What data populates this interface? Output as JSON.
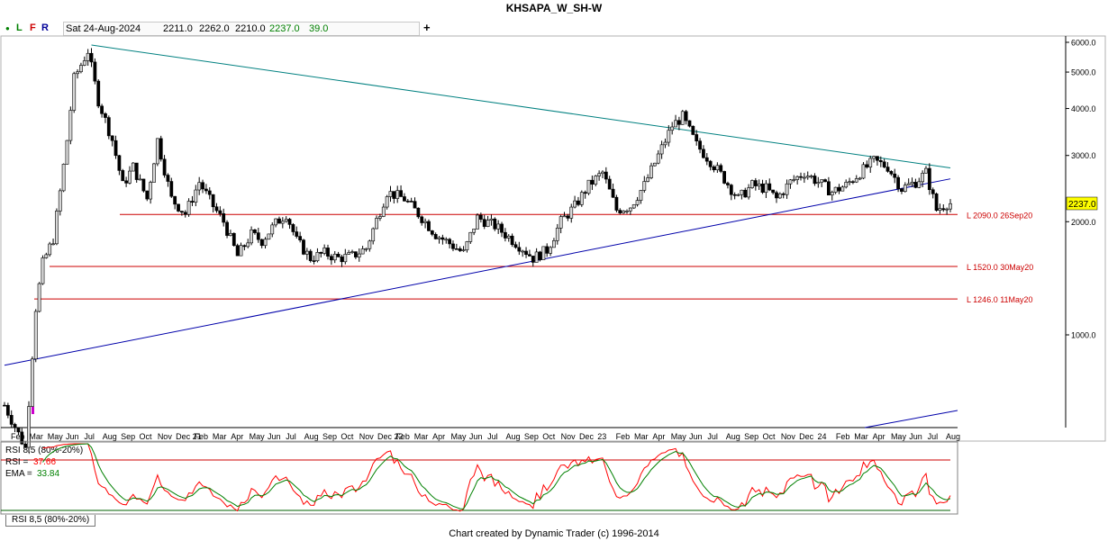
{
  "chart_data": {
    "type": "candlestick",
    "title": "KHSAPA_W_SH-W",
    "timeframe": "weekly",
    "y_scale": "log",
    "ylim": [
      800,
      6200
    ],
    "y_ticks": [
      {
        "value": 6000,
        "label": "6000.0"
      },
      {
        "value": 5000,
        "label": "5000.0"
      },
      {
        "value": 4000,
        "label": "4000.0"
      },
      {
        "value": 3000,
        "label": "3000.0"
      },
      {
        "value": 2000,
        "label": "2000.0"
      },
      {
        "value": 1000,
        "label": "1000.0"
      }
    ],
    "current_price_label": "2237.0",
    "current_price": 2237.0,
    "x_labels": [
      "Feb",
      "Mar",
      "May",
      "Jun",
      "Jul",
      "Aug",
      "Sep",
      "Oct",
      "Nov",
      "Dec 21",
      "Feb",
      "Mar",
      "Apr",
      "May",
      "Jun",
      "Jul",
      "Aug",
      "Sep",
      "Oct",
      "Nov",
      "Dec 22",
      "Feb",
      "Mar",
      "Apr",
      "May",
      "Jun",
      "Jul",
      "Aug",
      "Sep",
      "Oct",
      "Nov",
      "Dec",
      "23",
      "Feb",
      "Mar",
      "Apr",
      "May",
      "Jun",
      "Jul",
      "Aug",
      "Sep",
      "Oct",
      "Nov",
      "Dec",
      "24",
      "Feb",
      "Mar",
      "Apr",
      "May",
      "Jun",
      "Jul",
      "Aug"
    ],
    "horizontal_lines": [
      {
        "value": 2090.0,
        "label": "L 2090.0 26Sep20",
        "color": "#cc0000"
      },
      {
        "value": 1520.0,
        "label": "L 1520.0 30May20",
        "color": "#cc0000"
      },
      {
        "value": 1246.0,
        "label": "L 1246.0 11May20",
        "color": "#cc0000"
      }
    ],
    "trendlines": [
      {
        "name": "descending",
        "color": "#008080",
        "from": {
          "bar": 25,
          "value": 5900
        },
        "to": {
          "bar": 272,
          "value": 2780
        }
      },
      {
        "name": "ascending",
        "color": "#0000aa",
        "from": {
          "bar": 0,
          "value": 830
        },
        "to": {
          "bar": 272,
          "value": 2600
        }
      }
    ],
    "ohlc_anchors": [
      {
        "bar": 0,
        "value": 650
      },
      {
        "bar": 6,
        "value": 500
      },
      {
        "bar": 9,
        "value": 1180
      },
      {
        "bar": 11,
        "value": 1550
      },
      {
        "bar": 14,
        "value": 1800
      },
      {
        "bar": 16,
        "value": 2400
      },
      {
        "bar": 18,
        "value": 3300
      },
      {
        "bar": 20,
        "value": 4800
      },
      {
        "bar": 24,
        "value": 5700
      },
      {
        "bar": 27,
        "value": 4200
      },
      {
        "bar": 31,
        "value": 3300
      },
      {
        "bar": 34,
        "value": 2500
      },
      {
        "bar": 37,
        "value": 2800
      },
      {
        "bar": 41,
        "value": 2300
      },
      {
        "bar": 44,
        "value": 3300
      },
      {
        "bar": 48,
        "value": 2300
      },
      {
        "bar": 52,
        "value": 2100
      },
      {
        "bar": 56,
        "value": 2550
      },
      {
        "bar": 60,
        "value": 2200
      },
      {
        "bar": 63,
        "value": 2000
      },
      {
        "bar": 67,
        "value": 1620
      },
      {
        "bar": 71,
        "value": 1850
      },
      {
        "bar": 74,
        "value": 1780
      },
      {
        "bar": 78,
        "value": 1980
      },
      {
        "bar": 81,
        "value": 2100
      },
      {
        "bar": 84,
        "value": 1780
      },
      {
        "bar": 88,
        "value": 1600
      },
      {
        "bar": 92,
        "value": 1650
      },
      {
        "bar": 96,
        "value": 1600
      },
      {
        "bar": 100,
        "value": 1620
      },
      {
        "bar": 104,
        "value": 1700
      },
      {
        "bar": 110,
        "value": 2400
      },
      {
        "bar": 115,
        "value": 2300
      },
      {
        "bar": 120,
        "value": 2050
      },
      {
        "bar": 124,
        "value": 1850
      },
      {
        "bar": 128,
        "value": 1750
      },
      {
        "bar": 132,
        "value": 1650
      },
      {
        "bar": 136,
        "value": 2050
      },
      {
        "bar": 141,
        "value": 1950
      },
      {
        "bar": 145,
        "value": 1820
      },
      {
        "bar": 149,
        "value": 1700
      },
      {
        "bar": 152,
        "value": 1600
      },
      {
        "bar": 156,
        "value": 1680
      },
      {
        "bar": 160,
        "value": 2000
      },
      {
        "bar": 164,
        "value": 2200
      },
      {
        "bar": 168,
        "value": 2500
      },
      {
        "bar": 172,
        "value": 2700
      },
      {
        "bar": 176,
        "value": 2150
      },
      {
        "bar": 180,
        "value": 2200
      },
      {
        "bar": 184,
        "value": 2500
      },
      {
        "bar": 188,
        "value": 3000
      },
      {
        "bar": 192,
        "value": 3600
      },
      {
        "bar": 195,
        "value": 3800
      },
      {
        "bar": 199,
        "value": 3200
      },
      {
        "bar": 203,
        "value": 2900
      },
      {
        "bar": 207,
        "value": 2600
      },
      {
        "bar": 211,
        "value": 2300
      },
      {
        "bar": 215,
        "value": 2500
      },
      {
        "bar": 219,
        "value": 2450
      },
      {
        "bar": 222,
        "value": 2300
      },
      {
        "bar": 226,
        "value": 2550
      },
      {
        "bar": 230,
        "value": 2700
      },
      {
        "bar": 234,
        "value": 2550
      },
      {
        "bar": 238,
        "value": 2400
      },
      {
        "bar": 242,
        "value": 2500
      },
      {
        "bar": 246,
        "value": 2700
      },
      {
        "bar": 250,
        "value": 2900
      },
      {
        "bar": 254,
        "value": 2800
      },
      {
        "bar": 258,
        "value": 2450
      },
      {
        "bar": 262,
        "value": 2550
      },
      {
        "bar": 265,
        "value": 2700
      },
      {
        "bar": 268,
        "value": 2150
      },
      {
        "bar": 271,
        "value": 2237
      }
    ],
    "rsi": {
      "label": "RSI 8,5 (80%-20%)",
      "rsi_label": "RSI =",
      "rsi_value": "37.66",
      "ema_label": "EMA =",
      "ema_value": "33.84",
      "levels": [
        80,
        20
      ],
      "colors": {
        "rsi": "#ff0000",
        "ema": "#008000"
      }
    }
  },
  "toolbar": {
    "buttons": [
      {
        "label": "●",
        "color": "#008000"
      },
      {
        "label": "L",
        "color": "#008000"
      },
      {
        "label": "F",
        "color": "#cc0000"
      },
      {
        "label": "R",
        "color": "#000099"
      }
    ],
    "date": "Sat 24-Aug-2024",
    "open": "2211.0",
    "high": "2262.0",
    "low": "2210.0",
    "close": "2237.0",
    "change": "39.0",
    "add": "+"
  },
  "tab_label": "RSI 8,5 (80%-20%)",
  "footer": "Chart created by Dynamic Trader  (c) 1996-2014"
}
